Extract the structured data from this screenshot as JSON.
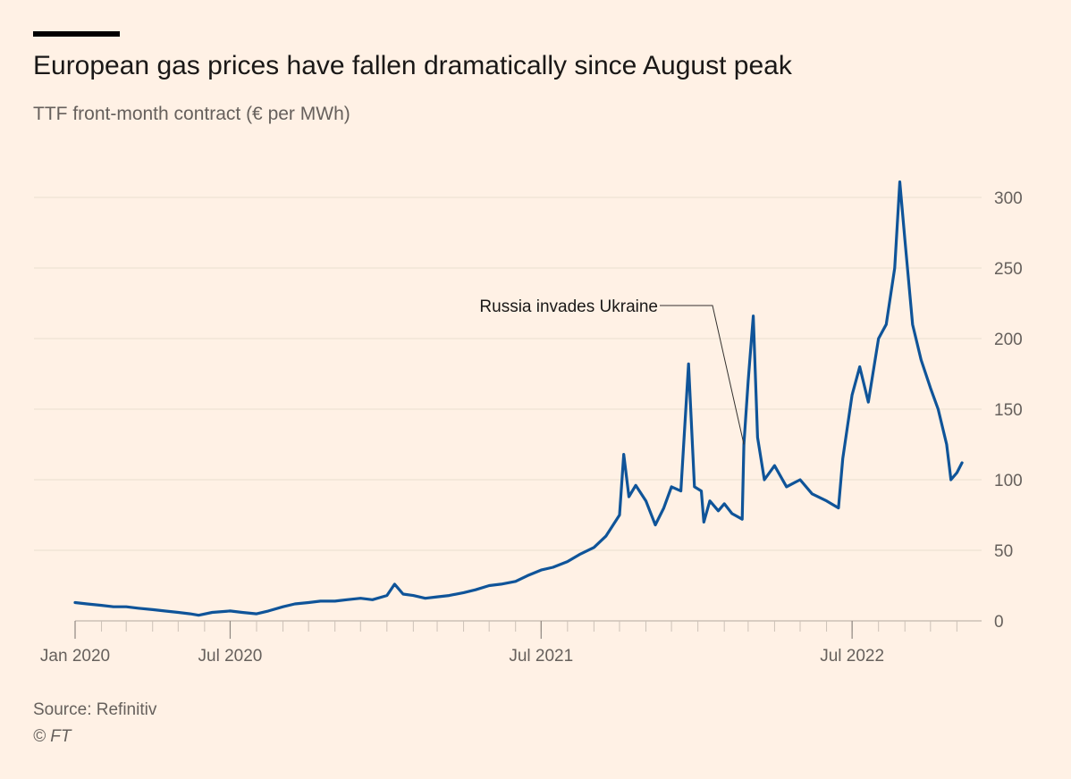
{
  "header": {
    "title": "European gas prices have fallen dramatically since August peak",
    "subtitle": "TTF front-month contract (€ per MWh)"
  },
  "footer": {
    "source": "Source: Refinitiv",
    "copyright": "© FT"
  },
  "colors": {
    "background": "#fff1e5",
    "line": "#0f5499",
    "grid": "#e9decf",
    "text": "#66605c",
    "title": "#1a1817"
  },
  "chart_data": {
    "type": "line",
    "title": "European gas prices have fallen dramatically since August peak",
    "subtitle": "TTF front-month contract (€ per MWh)",
    "xlabel": "",
    "ylabel": "",
    "y_axis_side": "right",
    "grid": "horizontal",
    "ylim": [
      0,
      300
    ],
    "xlim": [
      "2020-01-01",
      "2022-11-30"
    ],
    "y_ticks": [
      0,
      50,
      100,
      150,
      200,
      250,
      300
    ],
    "x_ticks": [
      {
        "date": "2020-01-01",
        "label": "Jan 2020"
      },
      {
        "date": "2020-07-01",
        "label": "Jul 2020"
      },
      {
        "date": "2021-07-01",
        "label": "Jul 2021"
      },
      {
        "date": "2022-07-01",
        "label": "Jul 2022"
      }
    ],
    "annotations": [
      {
        "text": "Russia invades Ukraine",
        "date": "2022-02-24",
        "value": 125
      }
    ],
    "series": [
      {
        "points": [
          [
            "2020-01-01",
            13
          ],
          [
            "2020-01-15",
            12
          ],
          [
            "2020-02-01",
            11
          ],
          [
            "2020-02-15",
            10
          ],
          [
            "2020-03-01",
            10
          ],
          [
            "2020-03-15",
            9
          ],
          [
            "2020-04-01",
            8
          ],
          [
            "2020-04-15",
            7
          ],
          [
            "2020-05-01",
            6
          ],
          [
            "2020-05-15",
            5
          ],
          [
            "2020-05-25",
            4
          ],
          [
            "2020-06-10",
            6
          ],
          [
            "2020-07-01",
            7
          ],
          [
            "2020-07-15",
            6
          ],
          [
            "2020-08-01",
            5
          ],
          [
            "2020-08-15",
            7
          ],
          [
            "2020-09-01",
            10
          ],
          [
            "2020-09-15",
            12
          ],
          [
            "2020-10-01",
            13
          ],
          [
            "2020-10-15",
            14
          ],
          [
            "2020-11-01",
            14
          ],
          [
            "2020-11-15",
            15
          ],
          [
            "2020-12-01",
            16
          ],
          [
            "2020-12-15",
            15
          ],
          [
            "2021-01-01",
            18
          ],
          [
            "2021-01-10",
            26
          ],
          [
            "2021-01-20",
            19
          ],
          [
            "2021-02-01",
            18
          ],
          [
            "2021-02-15",
            16
          ],
          [
            "2021-03-01",
            17
          ],
          [
            "2021-03-15",
            18
          ],
          [
            "2021-04-01",
            20
          ],
          [
            "2021-04-15",
            22
          ],
          [
            "2021-05-01",
            25
          ],
          [
            "2021-05-15",
            26
          ],
          [
            "2021-06-01",
            28
          ],
          [
            "2021-06-15",
            32
          ],
          [
            "2021-07-01",
            36
          ],
          [
            "2021-07-15",
            38
          ],
          [
            "2021-08-01",
            42
          ],
          [
            "2021-08-15",
            47
          ],
          [
            "2021-09-01",
            52
          ],
          [
            "2021-09-15",
            60
          ],
          [
            "2021-10-01",
            75
          ],
          [
            "2021-10-06",
            118
          ],
          [
            "2021-10-12",
            88
          ],
          [
            "2021-10-20",
            96
          ],
          [
            "2021-11-01",
            85
          ],
          [
            "2021-11-12",
            68
          ],
          [
            "2021-11-22",
            80
          ],
          [
            "2021-12-01",
            95
          ],
          [
            "2021-12-12",
            92
          ],
          [
            "2021-12-21",
            182
          ],
          [
            "2021-12-28",
            95
          ],
          [
            "2022-01-05",
            92
          ],
          [
            "2022-01-08",
            70
          ],
          [
            "2022-01-15",
            85
          ],
          [
            "2022-01-25",
            78
          ],
          [
            "2022-02-01",
            83
          ],
          [
            "2022-02-10",
            76
          ],
          [
            "2022-02-22",
            72
          ],
          [
            "2022-02-24",
            125
          ],
          [
            "2022-03-01",
            170
          ],
          [
            "2022-03-07",
            216
          ],
          [
            "2022-03-12",
            130
          ],
          [
            "2022-03-20",
            100
          ],
          [
            "2022-04-01",
            110
          ],
          [
            "2022-04-15",
            95
          ],
          [
            "2022-05-01",
            100
          ],
          [
            "2022-05-15",
            90
          ],
          [
            "2022-06-01",
            85
          ],
          [
            "2022-06-15",
            80
          ],
          [
            "2022-06-20",
            115
          ],
          [
            "2022-07-01",
            160
          ],
          [
            "2022-07-10",
            180
          ],
          [
            "2022-07-20",
            155
          ],
          [
            "2022-08-01",
            200
          ],
          [
            "2022-08-10",
            210
          ],
          [
            "2022-08-20",
            250
          ],
          [
            "2022-08-26",
            311
          ],
          [
            "2022-09-01",
            270
          ],
          [
            "2022-09-10",
            210
          ],
          [
            "2022-09-20",
            185
          ],
          [
            "2022-10-01",
            165
          ],
          [
            "2022-10-10",
            150
          ],
          [
            "2022-10-20",
            125
          ],
          [
            "2022-10-25",
            100
          ],
          [
            "2022-11-01",
            105
          ],
          [
            "2022-11-07",
            112
          ]
        ]
      }
    ]
  }
}
